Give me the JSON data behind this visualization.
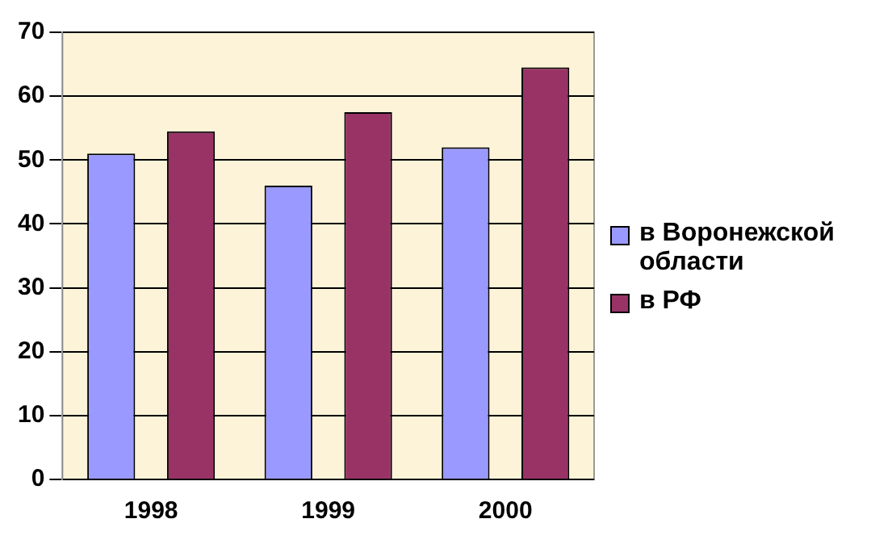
{
  "chart_data": {
    "type": "bar",
    "categories": [
      "1998",
      "1999",
      "2000"
    ],
    "series": [
      {
        "name": "в Воронежской области",
        "color": "#9999ff",
        "values": [
          51,
          46,
          52
        ]
      },
      {
        "name": "в РФ",
        "color": "#993366",
        "values": [
          54.5,
          57.5,
          64.5
        ]
      }
    ],
    "ylim": [
      0,
      70
    ],
    "yticks": [
      0,
      10,
      20,
      30,
      40,
      50,
      60,
      70
    ],
    "grid": "y",
    "legend": "right"
  }
}
